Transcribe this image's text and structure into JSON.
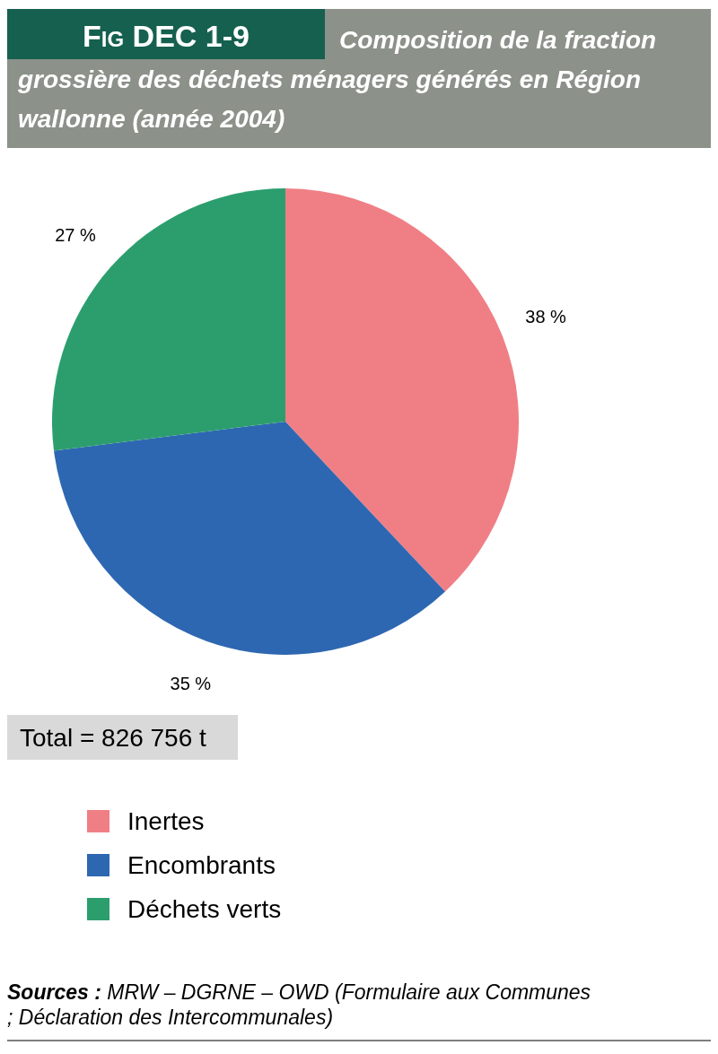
{
  "chart_data": {
    "type": "pie",
    "title": "Fig DEC 1-9",
    "subtitle": "Composition de la fraction grossière des déchets ménagers générés en Région wallonne (année 2004)",
    "categories": [
      "Inertes",
      "Encombrants",
      "Déchets verts"
    ],
    "values": [
      38,
      35,
      27
    ],
    "colors": [
      "#f07f85",
      "#2e67b1",
      "#2c9e6e"
    ],
    "value_labels": [
      "38 %",
      "35 %",
      "27 %"
    ],
    "legend": "bottom",
    "annotations": [
      "Total = 826 756 t",
      "Sources : MRW – DGRNE – OWD (Formulaire aux Communes ; Déclaration des Intercommunales)"
    ]
  }
}
